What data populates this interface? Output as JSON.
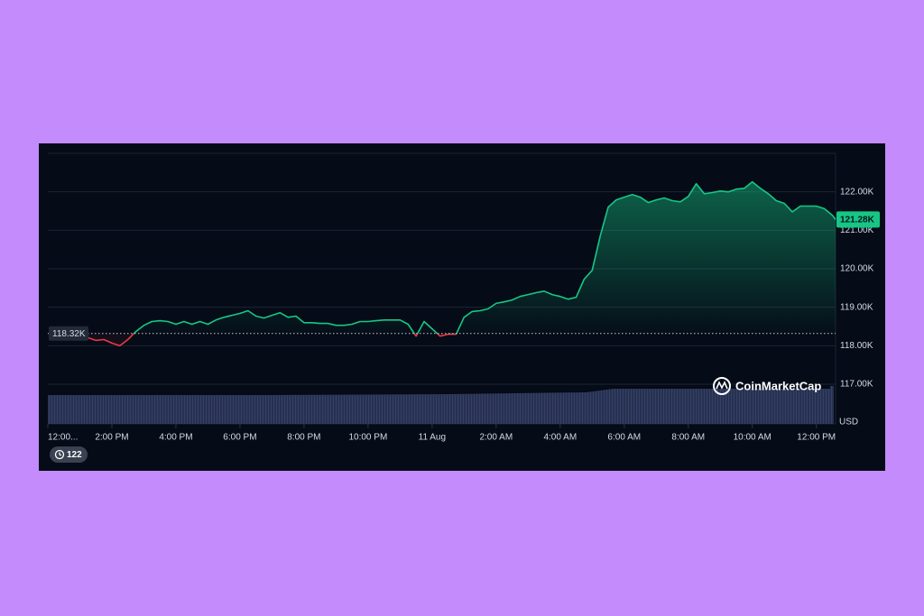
{
  "chart_data": {
    "type": "line",
    "y_axis_label": "USD",
    "watermark": "CoinMarketCap",
    "history_badge": 122,
    "x": [
      1.25,
      1.5,
      1.75,
      2.0,
      2.25,
      2.5,
      2.75,
      3.0,
      3.25,
      3.5,
      3.75,
      4.0,
      4.25,
      4.5,
      4.75,
      5.0,
      5.25,
      5.5,
      5.75,
      6.0,
      6.25,
      6.5,
      6.75,
      7.0,
      7.25,
      7.5,
      7.75,
      8.0,
      8.25,
      8.5,
      8.75,
      9.0,
      9.25,
      9.5,
      9.75,
      10.0,
      10.25,
      10.5,
      10.75,
      11.0,
      11.25,
      11.5,
      11.75,
      12.0,
      12.25,
      12.5,
      12.75,
      13.0,
      13.25,
      13.5,
      13.75,
      14.0,
      14.25,
      14.5,
      14.75,
      15.0,
      15.25,
      15.5,
      15.75,
      16.0,
      16.25,
      16.5,
      16.75,
      17.0,
      17.25,
      17.5,
      17.75,
      18.0,
      18.25,
      18.5,
      18.75,
      19.0,
      19.25,
      19.5,
      19.75,
      20.0,
      20.25,
      20.5,
      20.75,
      21.0,
      21.25,
      21.5,
      21.75,
      22.0,
      22.25,
      22.5,
      22.75,
      23.0,
      23.25,
      23.5,
      23.75,
      24.0,
      24.25,
      24.5,
      24.6
    ],
    "series": [
      {
        "name": "Price",
        "color": "#16c784",
        "down_color": "#ea3943",
        "values": [
          118210,
          118140,
          118160,
          118070,
          118000,
          118160,
          118370,
          118530,
          118630,
          118650,
          118630,
          118560,
          118630,
          118560,
          118630,
          118560,
          118670,
          118740,
          118790,
          118840,
          118910,
          118770,
          118720,
          118790,
          118860,
          118740,
          118770,
          118600,
          118600,
          118580,
          118580,
          118530,
          118530,
          118560,
          118630,
          118630,
          118650,
          118670,
          118670,
          118670,
          118560,
          118250,
          118630,
          118440,
          118250,
          118300,
          118300,
          118740,
          118890,
          118910,
          118960,
          119100,
          119140,
          119190,
          119280,
          119330,
          119380,
          119420,
          119330,
          119280,
          119210,
          119260,
          119730,
          119960,
          120850,
          121600,
          121790,
          121860,
          121930,
          121860,
          121720,
          121790,
          121840,
          121770,
          121740,
          121880,
          122210,
          121950,
          121980,
          122020,
          122000,
          122070,
          122090,
          122260,
          122090,
          121950,
          121770,
          121700,
          121480,
          121630,
          121630,
          121630,
          121560,
          121390,
          121280
        ]
      }
    ],
    "reference_line": {
      "value": 118320,
      "label": "118.32K"
    },
    "current_price": {
      "value": 121280,
      "label": "121.28K"
    },
    "xlim": [
      0,
      24.6
    ],
    "xticks": [
      {
        "value": 0,
        "label": "12:00..."
      },
      {
        "value": 2,
        "label": "2:00 PM"
      },
      {
        "value": 4,
        "label": "4:00 PM"
      },
      {
        "value": 6,
        "label": "6:00 PM"
      },
      {
        "value": 8,
        "label": "8:00 PM"
      },
      {
        "value": 10,
        "label": "10:00 PM"
      },
      {
        "value": 12,
        "label": "11 Aug"
      },
      {
        "value": 14,
        "label": "2:00 AM"
      },
      {
        "value": 16,
        "label": "4:00 AM"
      },
      {
        "value": 18,
        "label": "6:00 AM"
      },
      {
        "value": 20,
        "label": "8:00 AM"
      },
      {
        "value": 22,
        "label": "10:00 AM"
      },
      {
        "value": 24,
        "label": "12:00 PM"
      }
    ],
    "ylim": [
      116000,
      123000
    ],
    "yticks": [
      {
        "value": 117000,
        "label": "117.00K"
      },
      {
        "value": 118000,
        "label": "118.00K"
      },
      {
        "value": 119000,
        "label": "119.00K"
      },
      {
        "value": 120000,
        "label": "120.00K"
      },
      {
        "value": 121000,
        "label": "121.00K"
      },
      {
        "value": 122000,
        "label": "122.00K"
      }
    ],
    "grid": true
  }
}
